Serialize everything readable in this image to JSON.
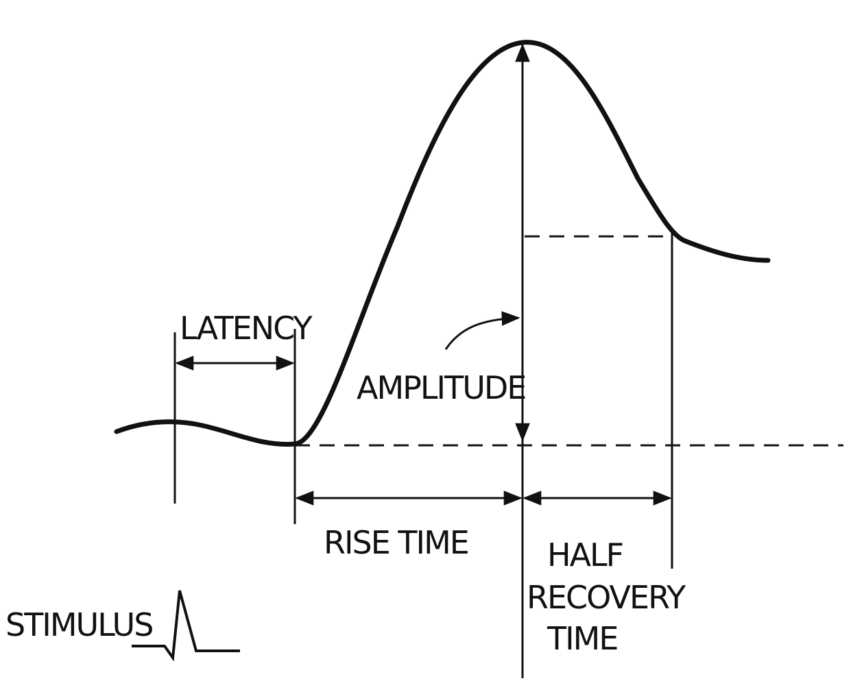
{
  "labels": {
    "latency": "LATENCY",
    "amplitude": "AMPLITUDE",
    "rise_time": "RISE TIME",
    "half_recovery_line1": "HALF",
    "half_recovery_line2": "RECOVERY",
    "half_recovery_line3": "TIME",
    "stimulus": "STIMULUS"
  },
  "colors": {
    "ink": "#111111",
    "background": "#ffffff"
  }
}
